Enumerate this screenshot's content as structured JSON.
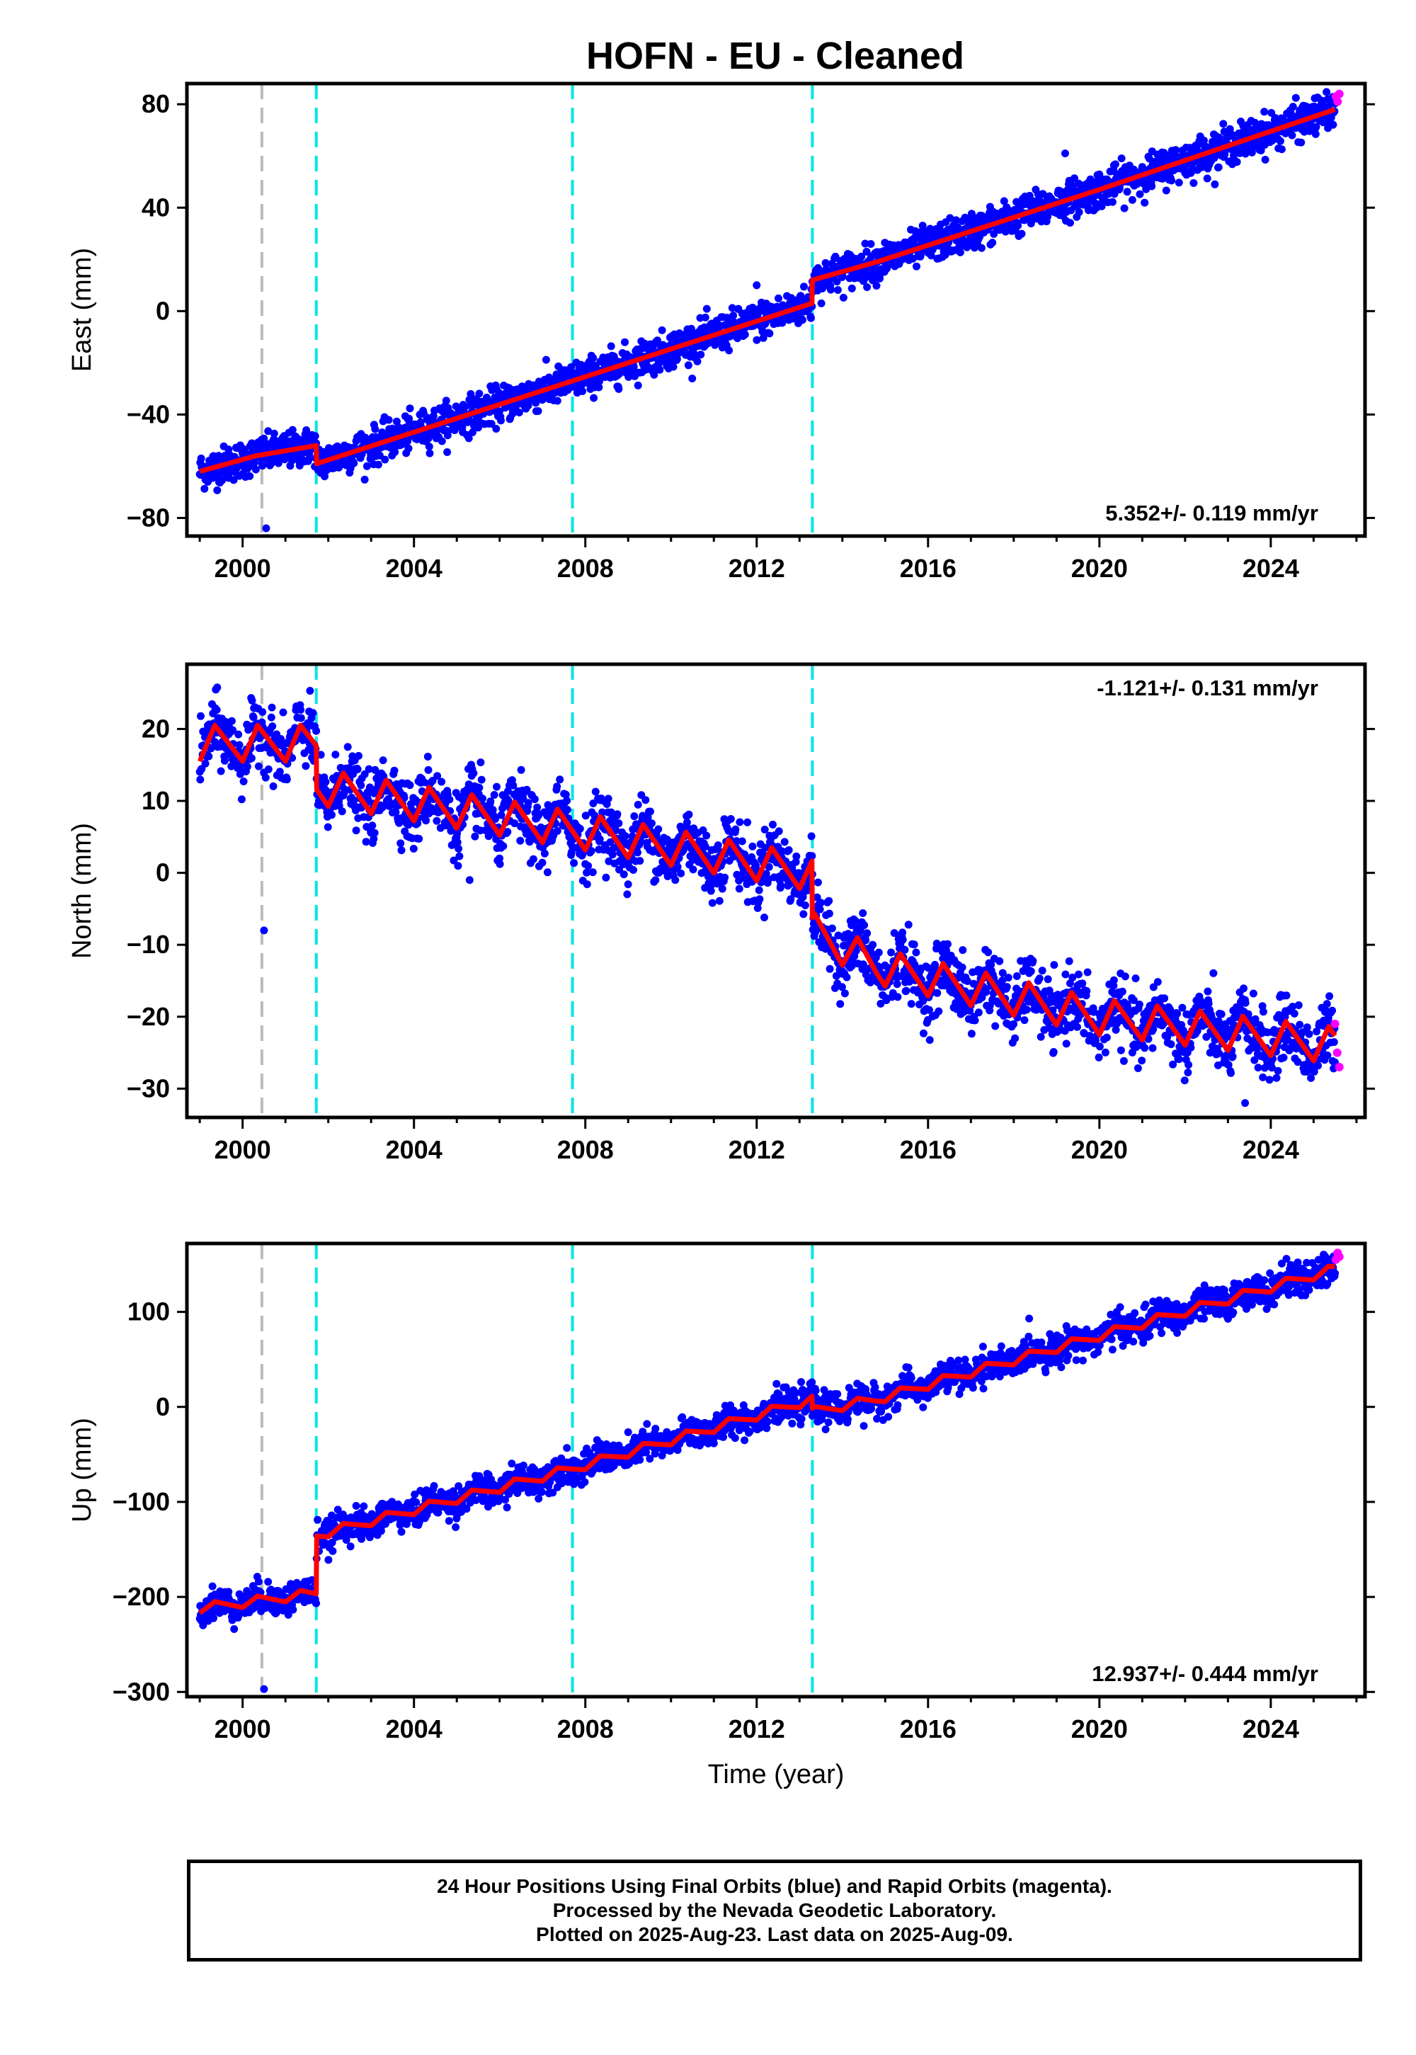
{
  "title": "HOFN  - EU - Cleaned",
  "colors": {
    "final": "#0000ff",
    "rapid": "#ff00ff",
    "model": "#ff0000",
    "offset_antenna": "#00e5e5",
    "offset_other": "#bbbbbb"
  },
  "chart_data": [
    {
      "type": "scatter",
      "ylabel": "East (mm)",
      "xlim": [
        1998.7,
        2026.2
      ],
      "ylim": [
        -87,
        88
      ],
      "yticks": [
        -80,
        -40,
        0,
        40,
        80
      ],
      "ytick_labels": [
        "−80",
        "−40",
        "0",
        "40",
        "80"
      ],
      "xticks": [
        2000,
        2004,
        2008,
        2012,
        2016,
        2020,
        2024
      ],
      "rate": "5.352+/- 0.119 mm/yr",
      "rate_position": "bottom-right",
      "offsets": [
        {
          "x": 2000.45,
          "kind": "other"
        },
        {
          "x": 2001.72,
          "kind": "antenna"
        },
        {
          "x": 2007.7,
          "kind": "antenna"
        },
        {
          "x": 2013.3,
          "kind": "antenna"
        }
      ],
      "model": [
        [
          1999.0,
          -62
        ],
        [
          2000.3,
          -56
        ],
        [
          2001.72,
          -52
        ],
        [
          2001.73,
          -59
        ],
        [
          2007.7,
          -27
        ],
        [
          2013.29,
          3
        ],
        [
          2013.3,
          12
        ],
        [
          2014.8,
          19
        ],
        [
          2020.0,
          47
        ],
        [
          2025.5,
          78
        ]
      ],
      "scatter": {
        "scatter_sd": 3.5,
        "outliers": [
          [
            2000.55,
            -84
          ],
          [
            2019.2,
            61
          ],
          [
            2012.0,
            10
          ]
        ]
      },
      "rapid": [
        [
          2025.52,
          83
        ],
        [
          2025.56,
          81
        ],
        [
          2025.6,
          84
        ]
      ]
    },
    {
      "type": "scatter",
      "ylabel": "North (mm)",
      "xlim": [
        1998.7,
        2026.2
      ],
      "ylim": [
        -34,
        29
      ],
      "yticks": [
        -30,
        -20,
        -10,
        0,
        10,
        20
      ],
      "ytick_labels": [
        "−30",
        "−20",
        "−10",
        "0",
        "10",
        "20"
      ],
      "xticks": [
        2000,
        2004,
        2008,
        2012,
        2016,
        2020,
        2024
      ],
      "rate": "-1.121+/- 0.131 mm/yr",
      "rate_position": "top-right",
      "offsets": [
        {
          "x": 2000.45,
          "kind": "other"
        },
        {
          "x": 2001.72,
          "kind": "antenna"
        },
        {
          "x": 2007.7,
          "kind": "antenna"
        },
        {
          "x": 2013.3,
          "kind": "antenna"
        }
      ],
      "model": [
        [
          1999.0,
          18
        ],
        [
          2001.72,
          18
        ],
        [
          2001.73,
          12
        ],
        [
          2007.7,
          6
        ],
        [
          2013.29,
          0
        ],
        [
          2013.3,
          -8
        ],
        [
          2014.8,
          -13
        ],
        [
          2020.0,
          -20
        ],
        [
          2025.5,
          -24
        ]
      ],
      "seasonal_amplitude": 5,
      "scatter": {
        "scatter_sd": 2.2,
        "outliers": [
          [
            2000.5,
            -8
          ],
          [
            2023.4,
            -32
          ],
          [
            2005.3,
            -1
          ],
          [
            2010.1,
            -1
          ]
        ]
      },
      "rapid": [
        [
          2025.5,
          -21
        ],
        [
          2025.55,
          -25
        ],
        [
          2025.6,
          -27
        ]
      ]
    },
    {
      "type": "scatter",
      "ylabel": "Up (mm)",
      "xlabel": "Time (year)",
      "xlim": [
        1998.7,
        2026.2
      ],
      "ylim": [
        -305,
        172
      ],
      "yticks": [
        -300,
        -200,
        -100,
        0,
        100
      ],
      "ytick_labels": [
        "−300",
        "−200",
        "−100",
        "0",
        "100"
      ],
      "xticks": [
        2000,
        2004,
        2008,
        2012,
        2016,
        2020,
        2024
      ],
      "rate": "12.937+/- 0.444 mm/yr",
      "rate_position": "bottom-right",
      "offsets": [
        {
          "x": 2000.45,
          "kind": "other"
        },
        {
          "x": 2001.72,
          "kind": "antenna"
        },
        {
          "x": 2007.7,
          "kind": "antenna"
        },
        {
          "x": 2013.3,
          "kind": "antenna"
        }
      ],
      "model": [
        [
          1999.0,
          -212
        ],
        [
          2001.72,
          -196
        ],
        [
          2001.73,
          -135
        ],
        [
          2007.7,
          -65
        ],
        [
          2013.29,
          8
        ],
        [
          2013.3,
          -5
        ],
        [
          2014.8,
          8
        ],
        [
          2020.0,
          75
        ],
        [
          2025.5,
          145
        ]
      ],
      "seasonal_amplitude": 10,
      "scatter": {
        "scatter_sd": 8,
        "outliers": [
          [
            2000.5,
            -297
          ],
          [
            2014.5,
            -20
          ]
        ]
      },
      "rapid": [
        [
          2025.52,
          155
        ],
        [
          2025.56,
          162
        ],
        [
          2025.6,
          158
        ]
      ]
    }
  ],
  "caption": [
    "24 Hour Positions Using Final Orbits (blue) and Rapid Orbits (magenta).",
    "Processed by the Nevada Geodetic Laboratory.",
    "Plotted on 2025-Aug-23. Last data on 2025-Aug-09."
  ]
}
